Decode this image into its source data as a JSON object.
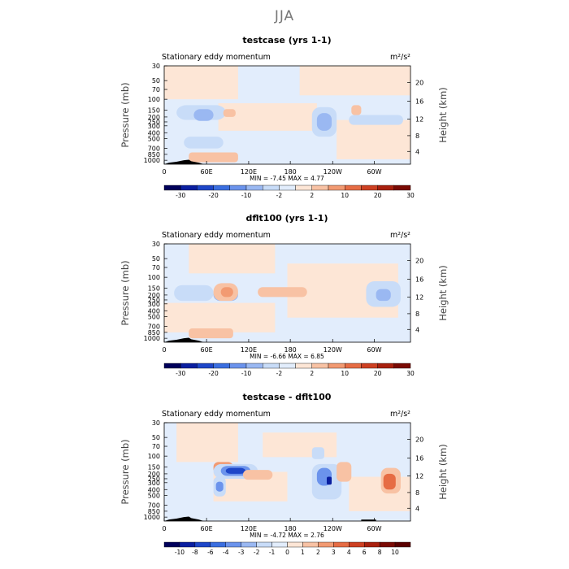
{
  "figure": {
    "title": "JJA"
  },
  "chart_data": [
    {
      "type": "heatmap",
      "title": "testcase (yrs 1-1)",
      "left_label": "Stationary eddy momentum",
      "units": "m²/s²",
      "ylabel": "Pressure (mb)",
      "y2label": "Height (km)",
      "y_ticks": [
        "30",
        "50",
        "70",
        "100",
        "150",
        "200",
        "250",
        "300",
        "400",
        "500",
        "700",
        "850",
        "1000"
      ],
      "y2_ticks": [
        "20",
        "16",
        "12",
        "8",
        "4"
      ],
      "x_ticks": [
        "0",
        "60E",
        "120E",
        "180",
        "120W",
        "60W"
      ],
      "stats": {
        "min_label": "MIN =",
        "min": "-7.45",
        "max_label": "MAX =",
        "max": "4.77"
      },
      "colorbar": {
        "ticks": [
          "-30",
          "-20",
          "-10",
          "-2",
          "2",
          "10",
          "20",
          "30"
        ],
        "colors": [
          "#00005a",
          "#0a1fa0",
          "#1e46c8",
          "#3a6ee0",
          "#6b93ec",
          "#9ab8f2",
          "#c8dcf8",
          "#e2edfc",
          "#fde6d6",
          "#f8c2a4",
          "#f29a72",
          "#e66c44",
          "#cd4022",
          "#a8200e",
          "#7a0a04"
        ]
      }
    },
    {
      "type": "heatmap",
      "title": "dflt100 (yrs 1-1)",
      "left_label": "Stationary eddy momentum",
      "units": "m²/s²",
      "ylabel": "Pressure (mb)",
      "y2label": "Height (km)",
      "y_ticks": [
        "30",
        "50",
        "70",
        "100",
        "150",
        "200",
        "250",
        "300",
        "400",
        "500",
        "700",
        "850",
        "1000"
      ],
      "y2_ticks": [
        "20",
        "16",
        "12",
        "8",
        "4"
      ],
      "x_ticks": [
        "0",
        "60E",
        "120E",
        "180",
        "120W",
        "60W"
      ],
      "stats": {
        "min_label": "MIN =",
        "min": "-6.66",
        "max_label": "MAX =",
        "max": "6.85"
      },
      "colorbar": {
        "ticks": [
          "-30",
          "-20",
          "-10",
          "-2",
          "2",
          "10",
          "20",
          "30"
        ],
        "colors": [
          "#00005a",
          "#0a1fa0",
          "#1e46c8",
          "#3a6ee0",
          "#6b93ec",
          "#9ab8f2",
          "#c8dcf8",
          "#e2edfc",
          "#fde6d6",
          "#f8c2a4",
          "#f29a72",
          "#e66c44",
          "#cd4022",
          "#a8200e",
          "#7a0a04"
        ]
      }
    },
    {
      "type": "heatmap",
      "title": "testcase - dflt100",
      "left_label": "Stationary eddy momentum",
      "units": "m²/s²",
      "ylabel": "Pressure (mb)",
      "y2label": "Height (km)",
      "y_ticks": [
        "30",
        "50",
        "70",
        "100",
        "150",
        "200",
        "250",
        "300",
        "400",
        "500",
        "700",
        "850",
        "1000"
      ],
      "y2_ticks": [
        "20",
        "16",
        "12",
        "8",
        "4"
      ],
      "x_ticks": [
        "0",
        "60E",
        "120E",
        "180",
        "120W",
        "60W"
      ],
      "stats": {
        "min_label": "MIN =",
        "min": "-4.72",
        "max_label": "MAX =",
        "max": "2.76"
      },
      "colorbar": {
        "ticks": [
          "-10",
          "-8",
          "-6",
          "-4",
          "-3",
          "-2",
          "-1",
          "0",
          "1",
          "2",
          "3",
          "4",
          "6",
          "8",
          "10"
        ],
        "colors": [
          "#00005a",
          "#0a1fa0",
          "#1e46c8",
          "#3a6ee0",
          "#6b93ec",
          "#9ab8f2",
          "#c8dcf8",
          "#e2edfc",
          "#fde6d6",
          "#f8c2a4",
          "#f29a72",
          "#e66c44",
          "#cd4022",
          "#a8200e",
          "#7a0a04",
          "#5a0000"
        ]
      }
    }
  ]
}
